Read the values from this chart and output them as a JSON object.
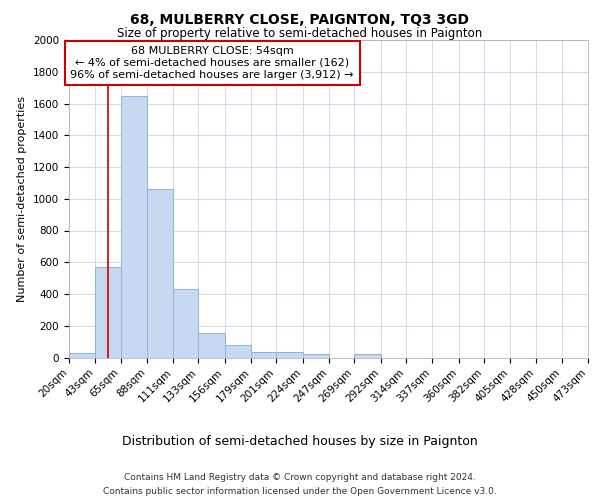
{
  "title": "68, MULBERRY CLOSE, PAIGNTON, TQ3 3GD",
  "subtitle": "Size of property relative to semi-detached houses in Paignton",
  "xlabel": "Distribution of semi-detached houses by size in Paignton",
  "ylabel": "Number of semi-detached properties",
  "footer1": "Contains HM Land Registry data © Crown copyright and database right 2024.",
  "footer2": "Contains public sector information licensed under the Open Government Licence v3.0.",
  "annotation_line1": "68 MULBERRY CLOSE: 54sqm",
  "annotation_line2": "← 4% of semi-detached houses are smaller (162)",
  "annotation_line3": "96% of semi-detached houses are larger (3,912) →",
  "property_size": 54,
  "bin_edges": [
    20,
    43,
    65,
    88,
    111,
    133,
    156,
    179,
    201,
    224,
    247,
    269,
    292,
    314,
    337,
    360,
    382,
    405,
    428,
    450,
    473
  ],
  "bar_values": [
    30,
    570,
    1650,
    1060,
    430,
    155,
    80,
    35,
    35,
    20,
    0,
    20,
    0,
    0,
    0,
    0,
    0,
    0,
    0,
    0
  ],
  "bar_color": "#c6d9f0",
  "bar_edge_color": "#8db3e2",
  "vline_color": "#cc0000",
  "annotation_box_color": "#cc0000",
  "grid_color": "#c8d4e8",
  "background_color": "#ffffff",
  "ylim": [
    0,
    2000
  ],
  "yticks": [
    0,
    200,
    400,
    600,
    800,
    1000,
    1200,
    1400,
    1600,
    1800,
    2000
  ],
  "title_fontsize": 10,
  "subtitle_fontsize": 8.5,
  "ylabel_fontsize": 8,
  "xlabel_fontsize": 9,
  "tick_fontsize": 7.5,
  "annotation_fontsize": 8,
  "footer_fontsize": 6.5
}
